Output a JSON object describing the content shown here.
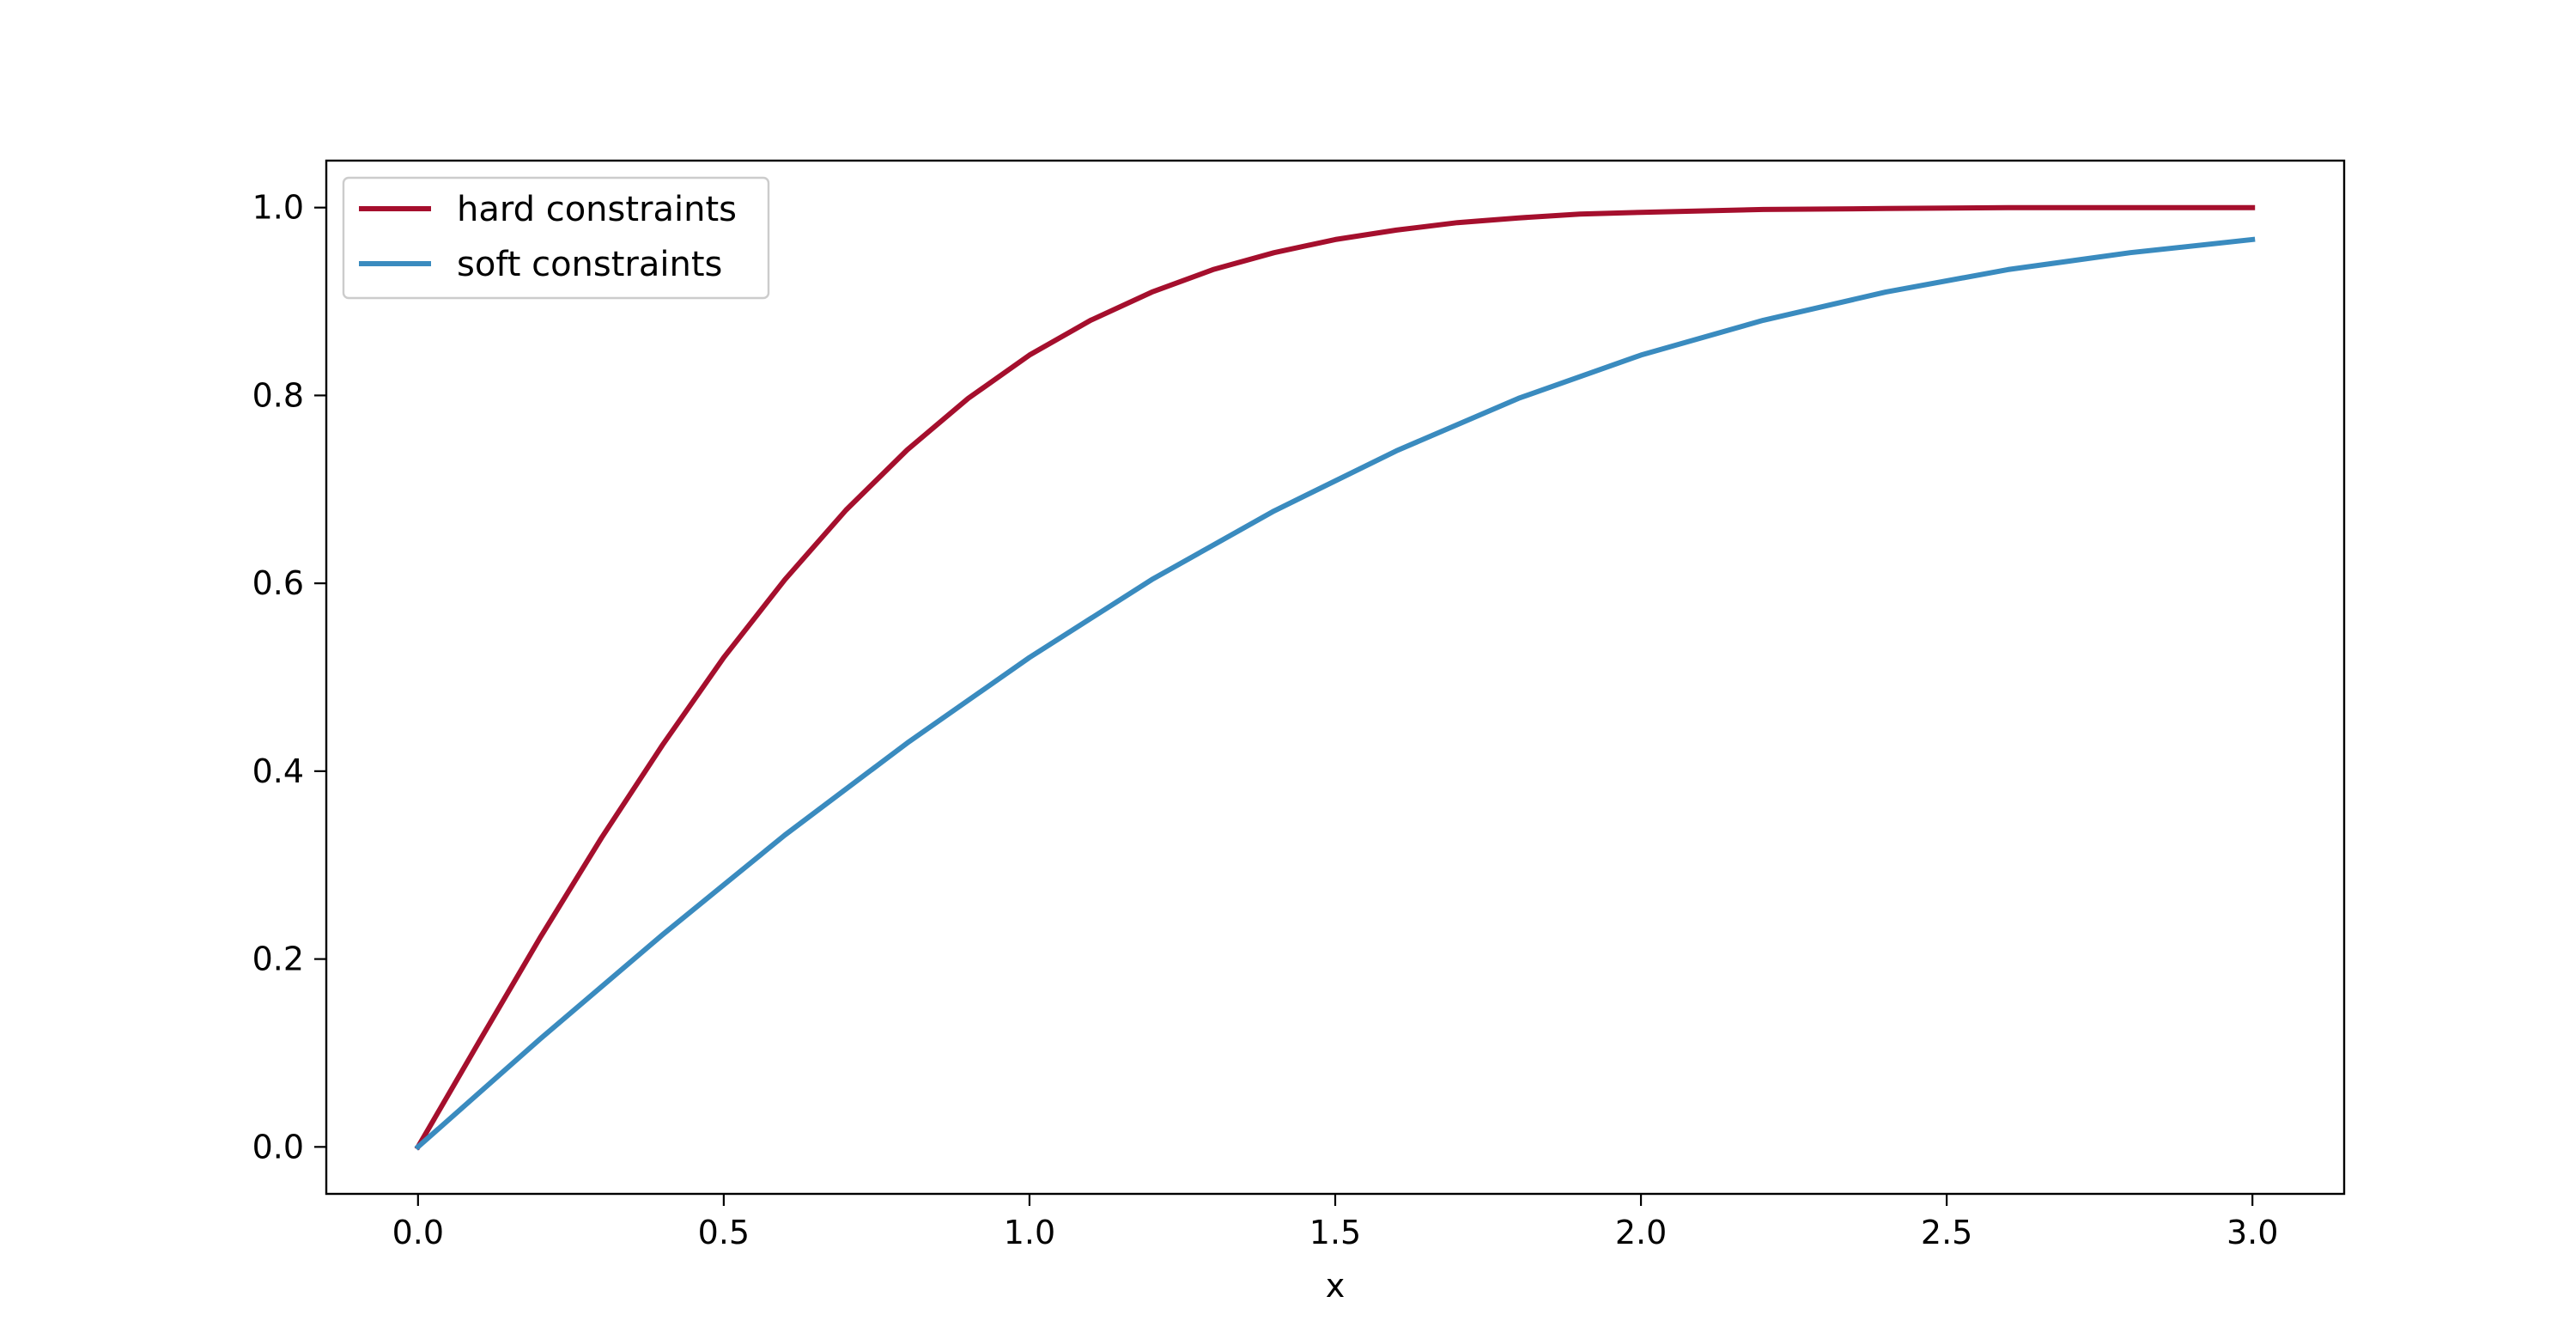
{
  "chart_data": {
    "type": "line",
    "title": "",
    "xlabel": "x",
    "ylabel": "",
    "xlim": [
      -0.15,
      3.15
    ],
    "ylim": [
      -0.05,
      1.05
    ],
    "xticks": [
      "0.0",
      "0.5",
      "1.0",
      "1.5",
      "2.0",
      "2.5",
      "3.0"
    ],
    "yticks": [
      "0.0",
      "0.2",
      "0.4",
      "0.6",
      "0.8",
      "1.0"
    ],
    "grid": false,
    "legend_position": "top-left",
    "series": [
      {
        "name": "hard constraints",
        "color": "#a50f2d",
        "x": [
          0.0,
          0.1,
          0.2,
          0.3,
          0.4,
          0.5,
          0.6,
          0.7,
          0.8,
          0.9,
          1.0,
          1.1,
          1.2,
          1.3,
          1.4,
          1.5,
          1.6,
          1.7,
          1.8,
          1.9,
          2.0,
          2.2,
          2.4,
          2.6,
          2.8,
          3.0
        ],
        "y": [
          0.0,
          0.112,
          0.223,
          0.329,
          0.428,
          0.521,
          0.604,
          0.678,
          0.742,
          0.797,
          0.843,
          0.88,
          0.91,
          0.934,
          0.952,
          0.966,
          0.976,
          0.984,
          0.989,
          0.993,
          0.995,
          0.998,
          0.999,
          1.0,
          1.0,
          1.0
        ]
      },
      {
        "name": "soft constraints",
        "color": "#3a8bbf",
        "x": [
          0.0,
          0.2,
          0.4,
          0.6,
          0.8,
          1.0,
          1.2,
          1.4,
          1.6,
          1.8,
          2.0,
          2.2,
          2.4,
          2.6,
          2.8,
          3.0
        ],
        "y": [
          0.0,
          0.115,
          0.226,
          0.332,
          0.43,
          0.521,
          0.604,
          0.677,
          0.741,
          0.797,
          0.843,
          0.88,
          0.91,
          0.934,
          0.952,
          0.966
        ]
      }
    ]
  }
}
